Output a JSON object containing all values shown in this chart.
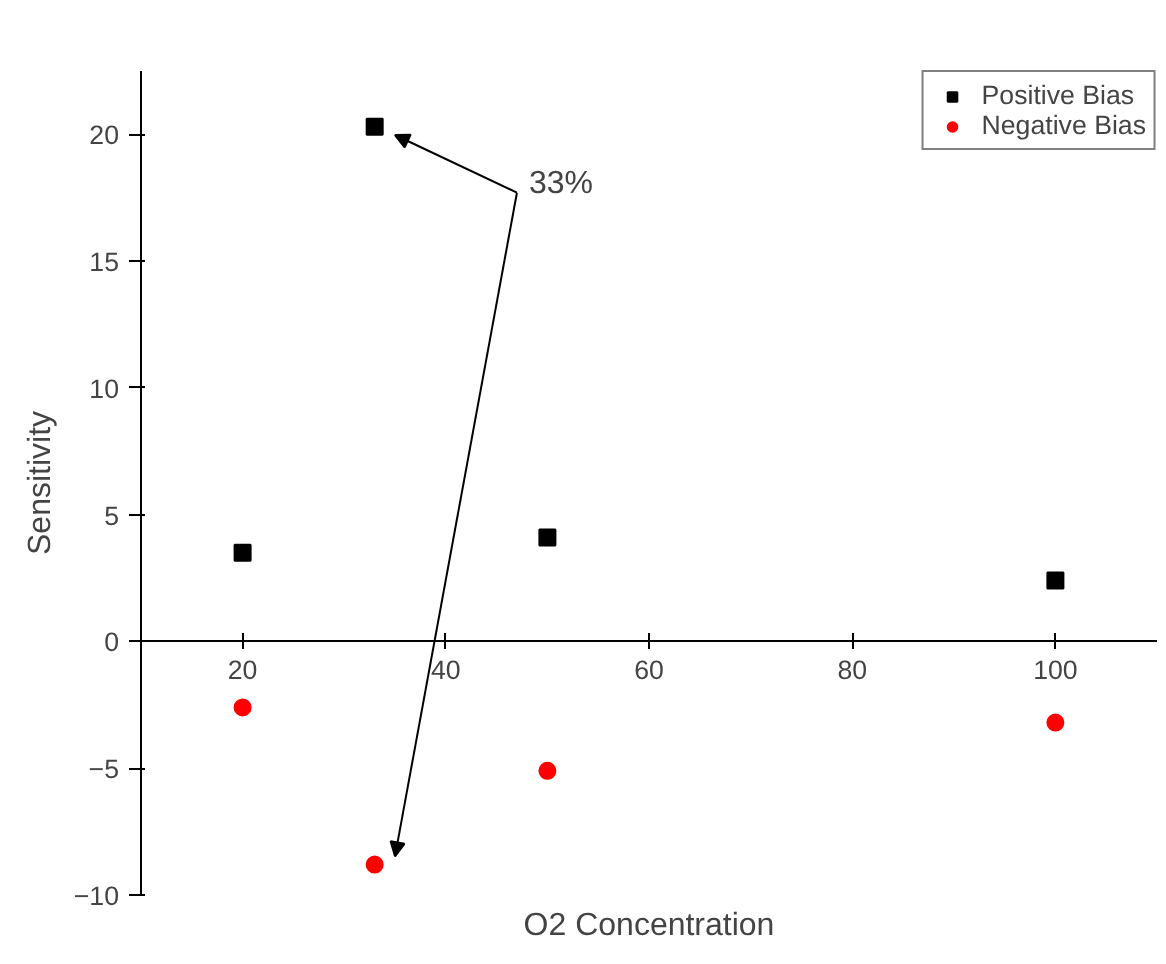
{
  "chart_data": {
    "type": "scatter",
    "xlabel": "O2 Concentration",
    "ylabel": "Sensitivity",
    "x": [
      20,
      33,
      50,
      100
    ],
    "series": [
      {
        "name": "Positive Bias",
        "color": "#000000",
        "marker": "square",
        "values": [
          3.5,
          20.3,
          4.1,
          2.4
        ]
      },
      {
        "name": "Negative Bias",
        "color": "#ff0000",
        "marker": "circle",
        "values": [
          -2.6,
          -8.8,
          -5.1,
          -3.2
        ]
      }
    ],
    "xlim": [
      10,
      110
    ],
    "xticks": [
      20,
      40,
      60,
      80,
      100
    ],
    "ylim": [
      -10,
      22.5
    ],
    "yticks": [
      -10,
      -5,
      0,
      5,
      10,
      15,
      20
    ],
    "annotations": [
      "33%"
    ],
    "grid": false,
    "legend": "top right"
  }
}
